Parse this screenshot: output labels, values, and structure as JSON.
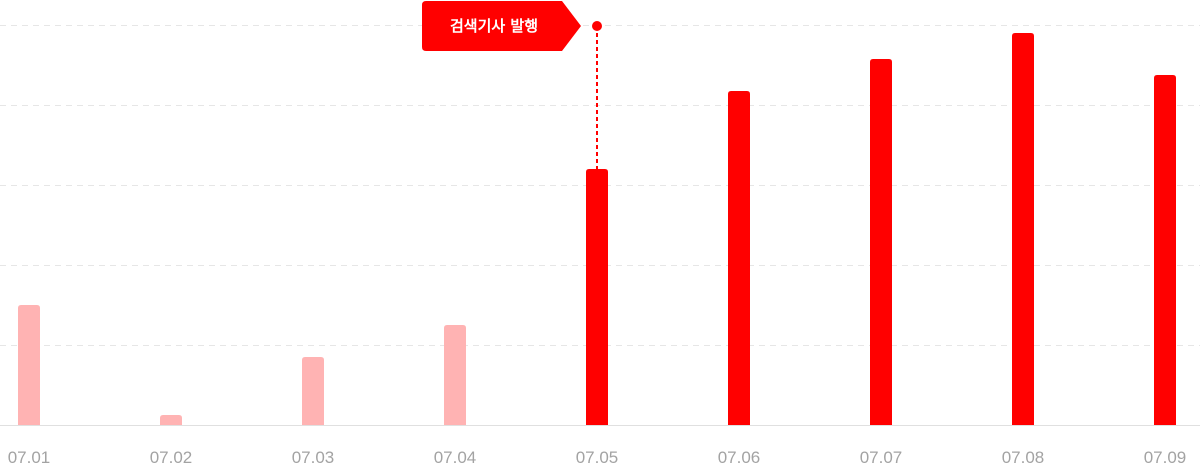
{
  "chart_data": {
    "type": "bar",
    "categories": [
      "07.01",
      "07.02",
      "07.03",
      "07.04",
      "07.05",
      "07.06",
      "07.07",
      "07.08",
      "07.09"
    ],
    "values": [
      30,
      2.5,
      17,
      25,
      64,
      83.5,
      91.5,
      98,
      87.5
    ],
    "ylim": [
      0,
      100
    ],
    "grid": true,
    "colors": {
      "before": "#ffb3b3",
      "after": "#ff0000",
      "grid": "#e6e6e6",
      "axis": "#e0e0e0",
      "tick": "#a3a3a3"
    },
    "annotation": {
      "label": "검색기사 발행",
      "category": "07.05"
    }
  }
}
